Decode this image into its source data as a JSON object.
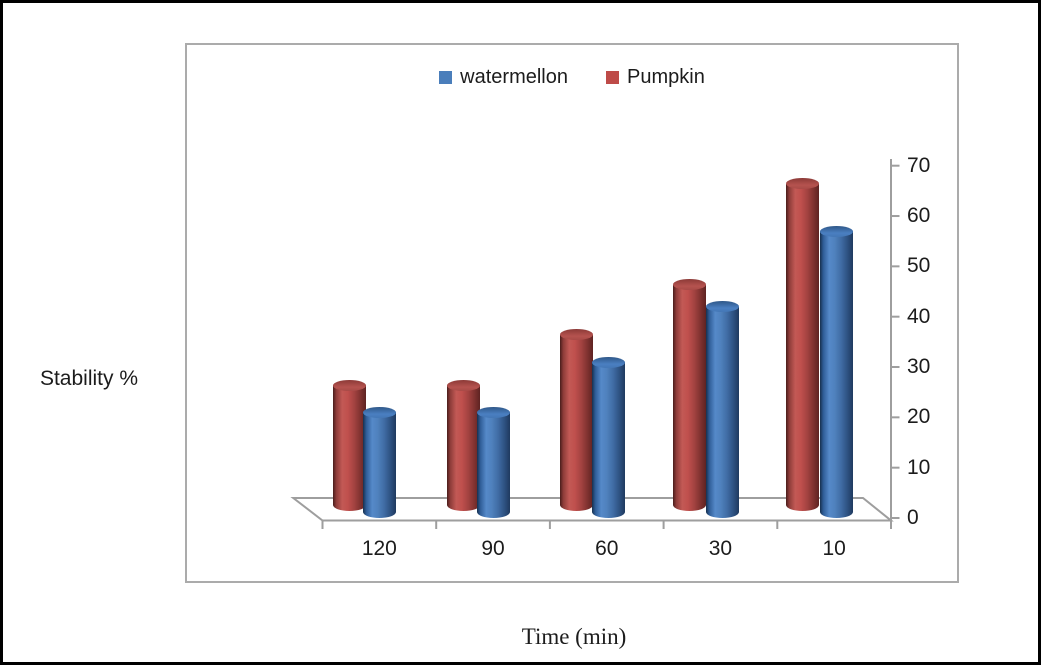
{
  "figure": {
    "background_color": "#ffffff",
    "outer_border_color": "#000000",
    "plot_border_color": "#ababab",
    "axis_line_color": "#9e9e9e",
    "text_color": "#1c1c1c"
  },
  "legend": {
    "items": [
      {
        "label": "watermellon",
        "swatch_color": "#4a7ebb"
      },
      {
        "label": "Pumpkin",
        "swatch_color": "#be4b48"
      }
    ]
  },
  "chart_data": {
    "type": "bar",
    "variant": "3d-cylinder",
    "title": "",
    "xlabel": "Time (min)",
    "ylabel": "Stability %",
    "categories": [
      "120",
      "90",
      "60",
      "30",
      "10"
    ],
    "series": [
      {
        "name": "watermellon",
        "color": "#4f81bd",
        "depth_row": "front",
        "values": [
          20,
          20,
          30,
          41,
          56
        ]
      },
      {
        "name": "Pumpkin",
        "color": "#c0504d",
        "depth_row": "back",
        "values": [
          24,
          24,
          34,
          44,
          64
        ]
      }
    ],
    "ylim": [
      0,
      70
    ],
    "yticks": [
      0,
      10,
      20,
      30,
      40,
      50,
      60,
      70
    ],
    "ytick_interval": 10,
    "legend_position": "top-center",
    "grid": false,
    "axis_side": "right"
  }
}
